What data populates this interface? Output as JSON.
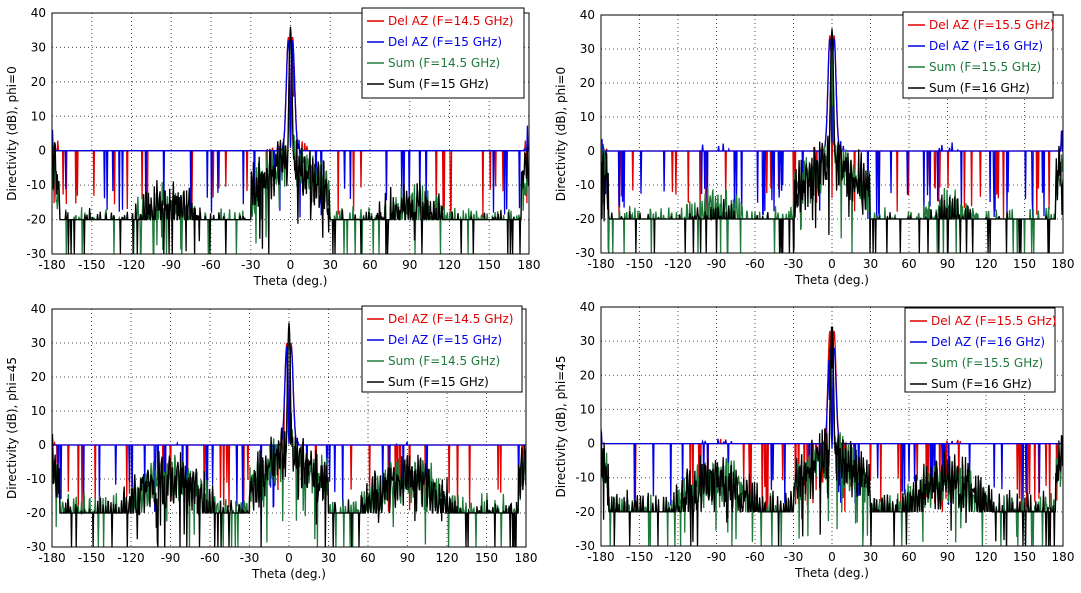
{
  "figure": {
    "colors": {
      "red": "#e00000",
      "blue": "#0000e6",
      "green": "#1f7a3a",
      "black": "#000000",
      "grid": "#000000",
      "frame": "#000000"
    }
  },
  "chart_data": [
    {
      "type": "line",
      "id": "p1",
      "xlabel": "Theta (deg.)",
      "ylabel": "Directivity (dB), phi=0",
      "xlim": [
        -180,
        180
      ],
      "ylim": [
        -30,
        40
      ],
      "xticks": [
        -180,
        -150,
        -120,
        -90,
        -60,
        -30,
        0,
        30,
        60,
        90,
        120,
        150,
        180
      ],
      "yticks": [
        -30,
        -20,
        -10,
        0,
        10,
        20,
        30,
        40
      ],
      "grid": true,
      "legend_position": "top-right",
      "series": [
        {
          "name": "Del AZ (F=14.5 GHz)",
          "color": "#e00000",
          "kind": "del",
          "peak": 33,
          "side": -9,
          "sidePos": 95,
          "floor": -22,
          "edge": 0,
          "ripple": 6
        },
        {
          "name": "Del AZ (F=15 GHz)",
          "color": "#0000e6",
          "kind": "del",
          "peak": 32,
          "side": -8.5,
          "sidePos": 90,
          "floor": -20,
          "edge": 1,
          "ripple": 5
        },
        {
          "name": "Sum (F=14.5 GHz)",
          "color": "#1f7a3a",
          "kind": "sum",
          "peak": 34,
          "side": -17,
          "sidePos": 95,
          "floor": -24,
          "edge": -5,
          "ripple": 5
        },
        {
          "name": "Sum (F=15 GHz)",
          "color": "#000000",
          "kind": "sum",
          "peak": 36,
          "side": -17,
          "sidePos": 90,
          "floor": -26,
          "edge": -3,
          "ripple": 6
        }
      ]
    },
    {
      "type": "line",
      "id": "p2",
      "xlabel": "Theta (deg.)",
      "ylabel": "Directivity (dB), phi=0",
      "xlim": [
        -180,
        180
      ],
      "ylim": [
        -30,
        40
      ],
      "xticks": [
        -180,
        -150,
        -120,
        -90,
        -60,
        -30,
        0,
        30,
        60,
        90,
        120,
        150,
        180
      ],
      "yticks": [
        -30,
        -20,
        -10,
        0,
        10,
        20,
        30,
        40
      ],
      "grid": true,
      "legend_position": "top-right",
      "series": [
        {
          "name": "Del AZ (F=15.5 GHz)",
          "color": "#e00000",
          "kind": "del",
          "peak": 34,
          "side": -8,
          "sidePos": 88,
          "floor": -22,
          "edge": 0,
          "ripple": 5
        },
        {
          "name": "Del AZ (F=16 GHz)",
          "color": "#0000e6",
          "kind": "del",
          "peak": 33,
          "side": -5,
          "sidePos": 90,
          "floor": -22,
          "edge": 1,
          "ripple": 5
        },
        {
          "name": "Sum (F=15.5 GHz)",
          "color": "#1f7a3a",
          "kind": "sum",
          "peak": 35,
          "side": -18,
          "sidePos": 90,
          "floor": -24,
          "edge": -3,
          "ripple": 5
        },
        {
          "name": "Sum (F=16 GHz)",
          "color": "#000000",
          "kind": "sum",
          "peak": 36,
          "side": -22,
          "sidePos": 90,
          "floor": -27,
          "edge": -2,
          "ripple": 6
        }
      ]
    },
    {
      "type": "line",
      "id": "p3",
      "xlabel": "Theta (deg.)",
      "ylabel": "Directivity (dB), phi=45",
      "xlim": [
        -180,
        180
      ],
      "ylim": [
        -30,
        40
      ],
      "xticks": [
        -180,
        -150,
        -120,
        -90,
        -60,
        -30,
        0,
        30,
        60,
        90,
        120,
        150,
        180
      ],
      "yticks": [
        -30,
        -20,
        -10,
        0,
        10,
        20,
        30,
        40
      ],
      "grid": true,
      "legend_position": "top-right",
      "series": [
        {
          "name": "Del AZ (F=14.5 GHz)",
          "color": "#e00000",
          "kind": "del",
          "peak": 30,
          "side": -5.5,
          "sidePos": 90,
          "floor": -21,
          "edge": -3,
          "ripple": 4
        },
        {
          "name": "Del AZ (F=15 GHz)",
          "color": "#0000e6",
          "kind": "del",
          "peak": 29,
          "side": -5,
          "sidePos": 90,
          "floor": -21,
          "edge": -3,
          "ripple": 4
        },
        {
          "name": "Sum (F=14.5 GHz)",
          "color": "#1f7a3a",
          "kind": "sum",
          "peak": 33,
          "side": -10,
          "sidePos": 90,
          "floor": -22,
          "edge": -5,
          "ripple": 5
        },
        {
          "name": "Sum (F=15 GHz)",
          "color": "#000000",
          "kind": "sum",
          "peak": 36,
          "side": -10,
          "sidePos": 90,
          "floor": -24,
          "edge": -4,
          "ripple": 6
        }
      ]
    },
    {
      "type": "line",
      "id": "p4",
      "xlabel": "Theta (deg.)",
      "ylabel": "Directivity (dB), phi=45",
      "xlim": [
        -180,
        180
      ],
      "ylim": [
        -30,
        40
      ],
      "xticks": [
        -180,
        -150,
        -120,
        -90,
        -60,
        -30,
        0,
        30,
        60,
        90,
        120,
        150,
        180
      ],
      "yticks": [
        -30,
        -20,
        -10,
        0,
        10,
        20,
        30,
        40
      ],
      "grid": true,
      "legend_position": "top-right",
      "series": [
        {
          "name": "Del AZ (F=15.5 GHz)",
          "color": "#e00000",
          "kind": "del",
          "peak": 33,
          "side": -4,
          "sidePos": 90,
          "floor": -20,
          "edge": -2,
          "ripple": 4
        },
        {
          "name": "Del AZ (F=16 GHz)",
          "color": "#0000e6",
          "kind": "del",
          "peak": 28,
          "side": -4,
          "sidePos": 90,
          "floor": -20,
          "edge": -2,
          "ripple": 4
        },
        {
          "name": "Sum (F=15.5 GHz)",
          "color": "#1f7a3a",
          "kind": "sum",
          "peak": 34,
          "side": -11,
          "sidePos": 90,
          "floor": -22,
          "edge": -4,
          "ripple": 5
        },
        {
          "name": "Sum (F=16 GHz)",
          "color": "#000000",
          "kind": "sum",
          "peak": 36.5,
          "side": -11,
          "sidePos": 90,
          "floor": -23,
          "edge": -3,
          "ripple": 6
        }
      ]
    }
  ]
}
